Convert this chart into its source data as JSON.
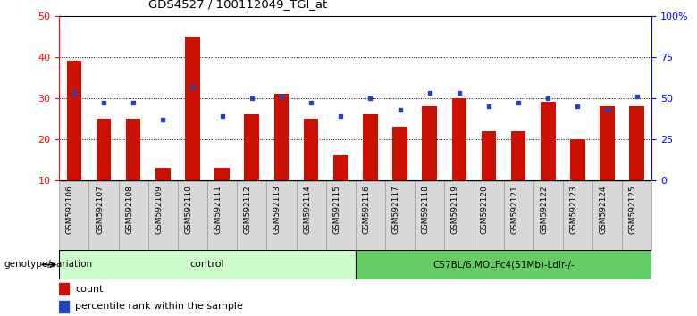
{
  "title": "GDS4527 / 100112049_TGI_at",
  "samples": [
    "GSM592106",
    "GSM592107",
    "GSM592108",
    "GSM592109",
    "GSM592110",
    "GSM592111",
    "GSM592112",
    "GSM592113",
    "GSM592114",
    "GSM592115",
    "GSM592116",
    "GSM592117",
    "GSM592118",
    "GSM592119",
    "GSM592120",
    "GSM592121",
    "GSM592122",
    "GSM592123",
    "GSM592124",
    "GSM592125"
  ],
  "counts": [
    39,
    25,
    25,
    13,
    45,
    13,
    26,
    31,
    25,
    16,
    26,
    23,
    28,
    30,
    22,
    22,
    29,
    20,
    28,
    28
  ],
  "percentile": [
    53,
    47,
    47,
    37,
    57,
    39,
    50,
    51,
    47,
    39,
    50,
    43,
    53,
    53,
    45,
    47,
    50,
    45,
    43,
    51
  ],
  "ylim_left": [
    10,
    50
  ],
  "ylim_right": [
    0,
    100
  ],
  "yticks_left": [
    10,
    20,
    30,
    40,
    50
  ],
  "yticks_right": [
    0,
    25,
    50,
    75,
    100
  ],
  "ytick_labels_right": [
    "0",
    "25",
    "50",
    "75",
    "100%"
  ],
  "group1_label": "control",
  "group2_label": "C57BL/6.MOLFc4(51Mb)-Ldlr-/-",
  "group1_count": 10,
  "group2_count": 10,
  "bar_color": "#cc1100",
  "dot_color": "#2244bb",
  "group1_bg": "#ccffcc",
  "group2_bg": "#66cc66",
  "tick_bg": "#d8d8d8",
  "legend_count_label": "count",
  "legend_pct_label": "percentile rank within the sample",
  "genotype_label": "genotype/variation",
  "bar_width": 0.5,
  "gridline_color": "#888888",
  "gridline_style": ":"
}
